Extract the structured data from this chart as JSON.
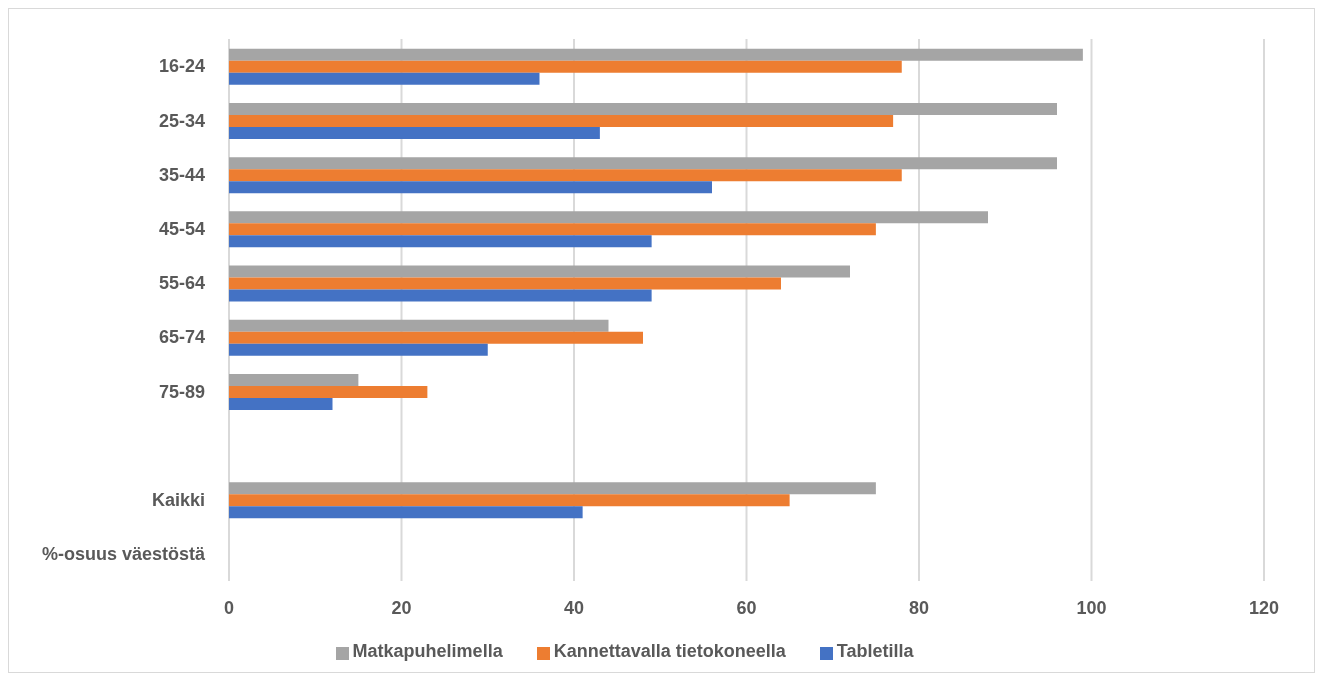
{
  "chart_data": {
    "type": "bar",
    "orientation": "horizontal",
    "categories": [
      "16-24",
      "25-34",
      "35-44",
      "45-54",
      "55-64",
      "65-74",
      "75-89",
      null,
      "Kaikki",
      "%-osuus väestöstä"
    ],
    "series": [
      {
        "name": "Matkapuhelimella",
        "color": "#a5a5a5",
        "values": [
          99,
          96,
          96,
          88,
          72,
          44,
          15,
          null,
          75,
          null
        ]
      },
      {
        "name": "Kannettavalla tietokoneella",
        "color": "#ed7d31",
        "values": [
          78,
          77,
          78,
          75,
          64,
          48,
          23,
          null,
          65,
          null
        ]
      },
      {
        "name": "Tabletilla",
        "color": "#4472c4",
        "values": [
          36,
          43,
          56,
          49,
          49,
          30,
          12,
          null,
          41,
          null
        ]
      }
    ],
    "xlim": [
      0,
      120
    ],
    "xticks": [
      0,
      20,
      40,
      60,
      80,
      100,
      120
    ],
    "grid": "x",
    "legend": "bottom"
  }
}
